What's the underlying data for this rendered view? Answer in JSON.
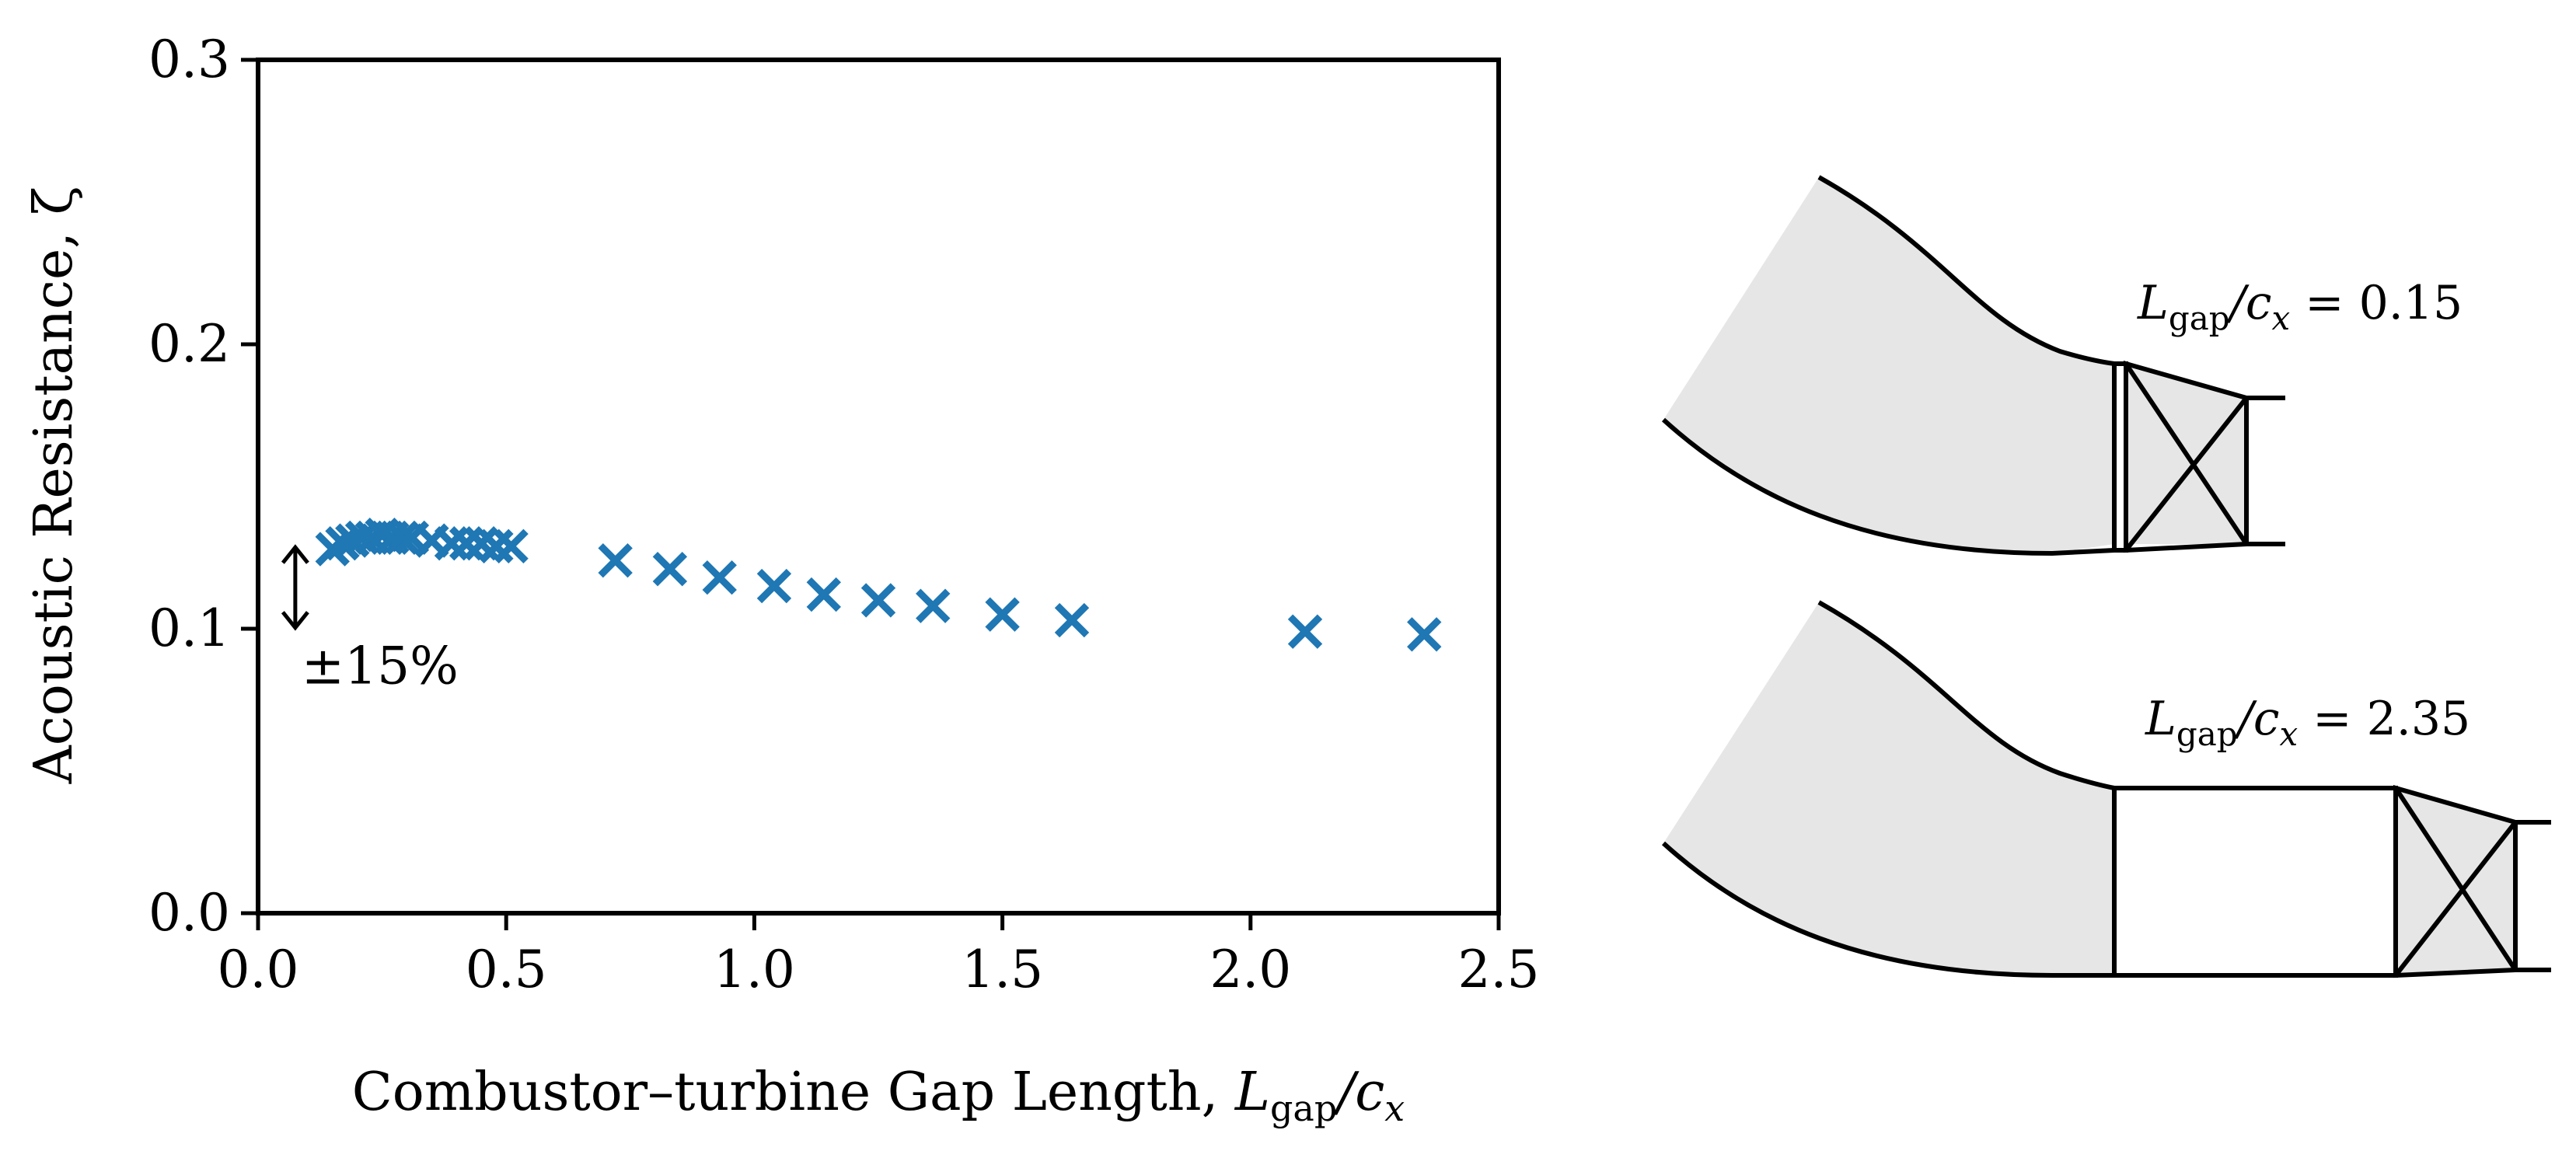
{
  "chart_data": {
    "type": "scatter",
    "xlabel": {
      "text": "Combustor–turbine Gap Length, ",
      "var": "L",
      "sub": "gap",
      "tail": "/c",
      "tail_sub": "x"
    },
    "ylabel": "Acoustic Resistance, ζ",
    "xlim": [
      0.0,
      2.5
    ],
    "ylim": [
      0.0,
      0.3
    ],
    "xticks": [
      "0.0",
      "0.5",
      "1.0",
      "1.5",
      "2.0",
      "2.5"
    ],
    "yticks": [
      "0.0",
      "0.1",
      "0.2",
      "0.3"
    ],
    "grid": false,
    "marker": "x",
    "color": "#1f77b4",
    "series": [
      {
        "x": [
          0.15,
          0.17,
          0.19,
          0.21,
          0.23,
          0.25,
          0.27,
          0.29,
          0.31,
          0.35,
          0.39,
          0.42,
          0.45,
          0.48,
          0.51,
          0.72,
          0.83,
          0.93,
          1.04,
          1.14,
          1.25,
          1.36,
          1.5,
          1.64,
          2.11,
          2.35
        ],
        "y": [
          0.128,
          0.13,
          0.131,
          0.132,
          0.132,
          0.133,
          0.132,
          0.132,
          0.132,
          0.131,
          0.13,
          0.13,
          0.13,
          0.129,
          0.129,
          0.124,
          0.121,
          0.118,
          0.115,
          0.112,
          0.11,
          0.108,
          0.105,
          0.103,
          0.099,
          0.098
        ]
      }
    ],
    "annotation": {
      "text": "±15%",
      "x": 0.075,
      "y_center": 0.115,
      "span": 0.15
    }
  },
  "schematics": [
    {
      "label_var": "L",
      "label_sub": "gap",
      "label_mid": "/c",
      "label_sub2": "x",
      "label_eq": " = 0.15"
    },
    {
      "label_var": "L",
      "label_sub": "gap",
      "label_mid": "/c",
      "label_sub2": "x",
      "label_eq": " = 2.35"
    }
  ],
  "colors": {
    "marker": "#1f77b4",
    "duct_fill": "#e6e6e6",
    "line": "#000000"
  }
}
